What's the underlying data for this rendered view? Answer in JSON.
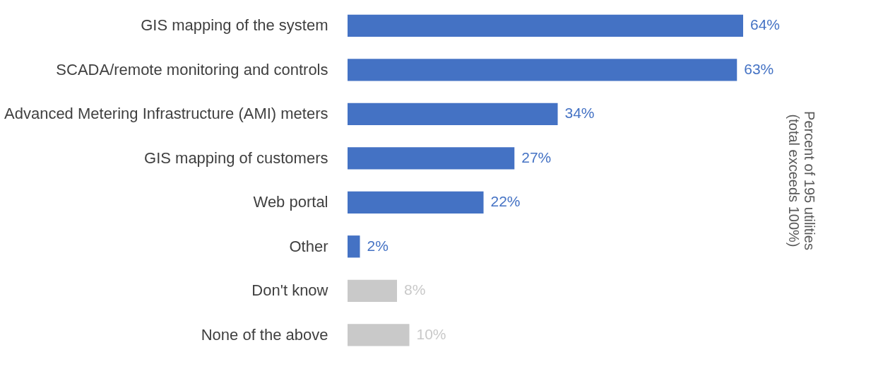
{
  "chart_data": {
    "type": "bar",
    "orientation": "horizontal",
    "ylabel": "Percent of 195 utilities\n(total exceeds 100%)",
    "categories": [
      "GIS mapping of the system",
      "SCADA/remote monitoring and controls",
      "Advanced Metering Infrastructure (AMI) meters",
      "GIS mapping of customers",
      "Web portal",
      "Other",
      "Don't know",
      "None of the above"
    ],
    "values": [
      64,
      63,
      34,
      27,
      22,
      2,
      8,
      10
    ],
    "value_labels": [
      "64%",
      "63%",
      "34%",
      "27%",
      "22%",
      "2%",
      "8%",
      "10%"
    ],
    "colors": [
      "#4472c4",
      "#4472c4",
      "#4472c4",
      "#4472c4",
      "#4472c4",
      "#4472c4",
      "#c9c9c9",
      "#c9c9c9"
    ]
  }
}
